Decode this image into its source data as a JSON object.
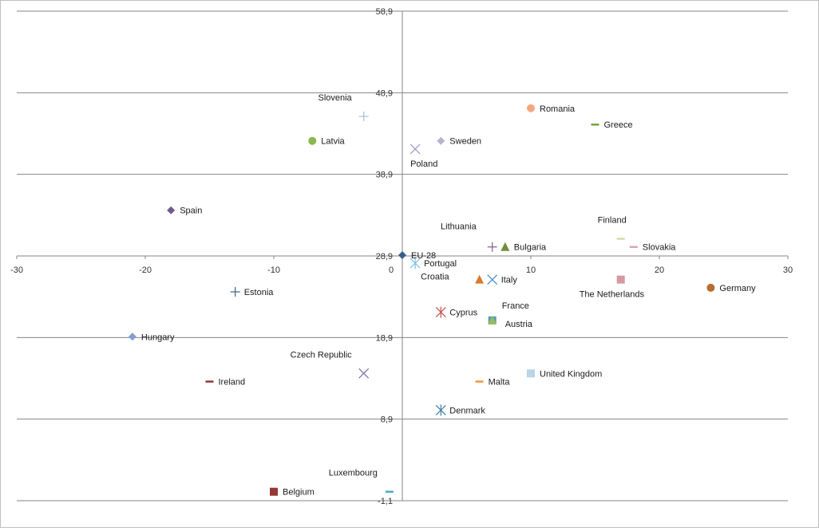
{
  "chart_data": {
    "type": "scatter",
    "title": "",
    "xlabel": "",
    "ylabel": "",
    "xlim": [
      -30,
      30
    ],
    "ylim": [
      -1.1,
      58.9
    ],
    "x_ticks": [
      "-30",
      "-20",
      "-10",
      "0",
      "10",
      "20",
      "30"
    ],
    "y_ticks": [
      "-1,1",
      "8,9",
      "18,9",
      "28,9",
      "38,9",
      "48,9",
      "58,9"
    ],
    "grid": "horizontal",
    "legend": "none",
    "points": [
      {
        "label": "Romania",
        "x": 10,
        "y": 47.0,
        "marker": "circle",
        "color": "#f4a77f",
        "label_pos": "right"
      },
      {
        "label": "Greece",
        "x": 15,
        "y": 45.0,
        "marker": "dash",
        "color": "#77a33a",
        "label_pos": "right"
      },
      {
        "label": "Slovenia",
        "x": -3,
        "y": 46.0,
        "marker": "plus",
        "color": "#a6bfd8",
        "label_pos": "upper-left"
      },
      {
        "label": "Latvia",
        "x": -7,
        "y": 43.0,
        "marker": "circle",
        "color": "#8ab84e",
        "label_pos": "right"
      },
      {
        "label": "Sweden",
        "x": 3,
        "y": 43.0,
        "marker": "diamond",
        "color": "#b5b5cf",
        "label_pos": "right"
      },
      {
        "label": "Poland",
        "x": 1,
        "y": 42.0,
        "marker": "x",
        "color": "#9a96c8",
        "label_pos": "below"
      },
      {
        "label": "Spain",
        "x": -18,
        "y": 34.5,
        "marker": "diamond",
        "color": "#705a8c",
        "label_pos": "right"
      },
      {
        "label": "Lithuania",
        "x": 7,
        "y": 30.0,
        "marker": "plus",
        "color": "#7a5e93",
        "label_pos": "upper-left"
      },
      {
        "label": "Bulgaria",
        "x": 8,
        "y": 30.0,
        "marker": "triangle",
        "color": "#6f8f3b",
        "label_pos": "right"
      },
      {
        "label": "Finland",
        "x": 17,
        "y": 31.0,
        "marker": "dash",
        "color": "#d6dba8",
        "label_pos": "upper-left"
      },
      {
        "label": "Slovakia",
        "x": 18,
        "y": 30.0,
        "marker": "dash",
        "color": "#d9a7b0",
        "label_pos": "right"
      },
      {
        "label": "EU-28",
        "x": 0,
        "y": 29.0,
        "marker": "diamond",
        "color": "#385d8a",
        "label_pos": "right"
      },
      {
        "label": "Portugal",
        "x": 1,
        "y": 28.0,
        "marker": "asterisk",
        "color": "#7fc2e0",
        "label_pos": "right"
      },
      {
        "label": "Croatia",
        "x": 6,
        "y": 26.0,
        "marker": "triangle",
        "color": "#d97a33",
        "label_pos": "left"
      },
      {
        "label": "Italy",
        "x": 7,
        "y": 26.0,
        "marker": "x",
        "color": "#4b88c9",
        "label_pos": "right"
      },
      {
        "label": "The Netherlands",
        "x": 17,
        "y": 26.0,
        "marker": "square",
        "color": "#d59aa0",
        "label_pos": "below"
      },
      {
        "label": "Germany",
        "x": 24,
        "y": 25.0,
        "marker": "circle",
        "color": "#b86d30",
        "label_pos": "right"
      },
      {
        "label": "Estonia",
        "x": -13,
        "y": 24.5,
        "marker": "plus",
        "color": "#3c5f8a",
        "label_pos": "right"
      },
      {
        "label": "Cyprus",
        "x": 3,
        "y": 22.0,
        "marker": "asterisk",
        "color": "#c0504d",
        "label_pos": "right"
      },
      {
        "label": "France",
        "x": 7,
        "y": 21.0,
        "marker": "square",
        "color": "#4f9fb5",
        "label_pos": "above"
      },
      {
        "label": "Austria",
        "x": 7,
        "y": 21.0,
        "marker": "triangle",
        "color": "#9bbb59",
        "label_pos": "below-right"
      },
      {
        "label": "Hungary",
        "x": -21,
        "y": 19.0,
        "marker": "diamond",
        "color": "#7f9fd0",
        "label_pos": "right"
      },
      {
        "label": "Czech Republic",
        "x": -3,
        "y": 14.5,
        "marker": "x",
        "color": "#7a6fa8",
        "label_pos": "upper-left"
      },
      {
        "label": "United Kingdom",
        "x": 10,
        "y": 14.5,
        "marker": "square",
        "color": "#b9d5e6",
        "label_pos": "right"
      },
      {
        "label": "Ireland",
        "x": -15,
        "y": 13.5,
        "marker": "dash",
        "color": "#943634",
        "label_pos": "right"
      },
      {
        "label": "Malta",
        "x": 6,
        "y": 13.5,
        "marker": "dash",
        "color": "#f0973a",
        "label_pos": "right"
      },
      {
        "label": "Denmark",
        "x": 3,
        "y": 10.0,
        "marker": "asterisk",
        "color": "#3e7fa6",
        "label_pos": "right"
      },
      {
        "label": "Luxembourg",
        "x": -1,
        "y": 0.0,
        "marker": "dash",
        "color": "#4bacc6",
        "label_pos": "upper-left"
      },
      {
        "label": "Belgium",
        "x": -10,
        "y": 0.0,
        "marker": "square",
        "color": "#953735",
        "label_pos": "right"
      }
    ]
  }
}
